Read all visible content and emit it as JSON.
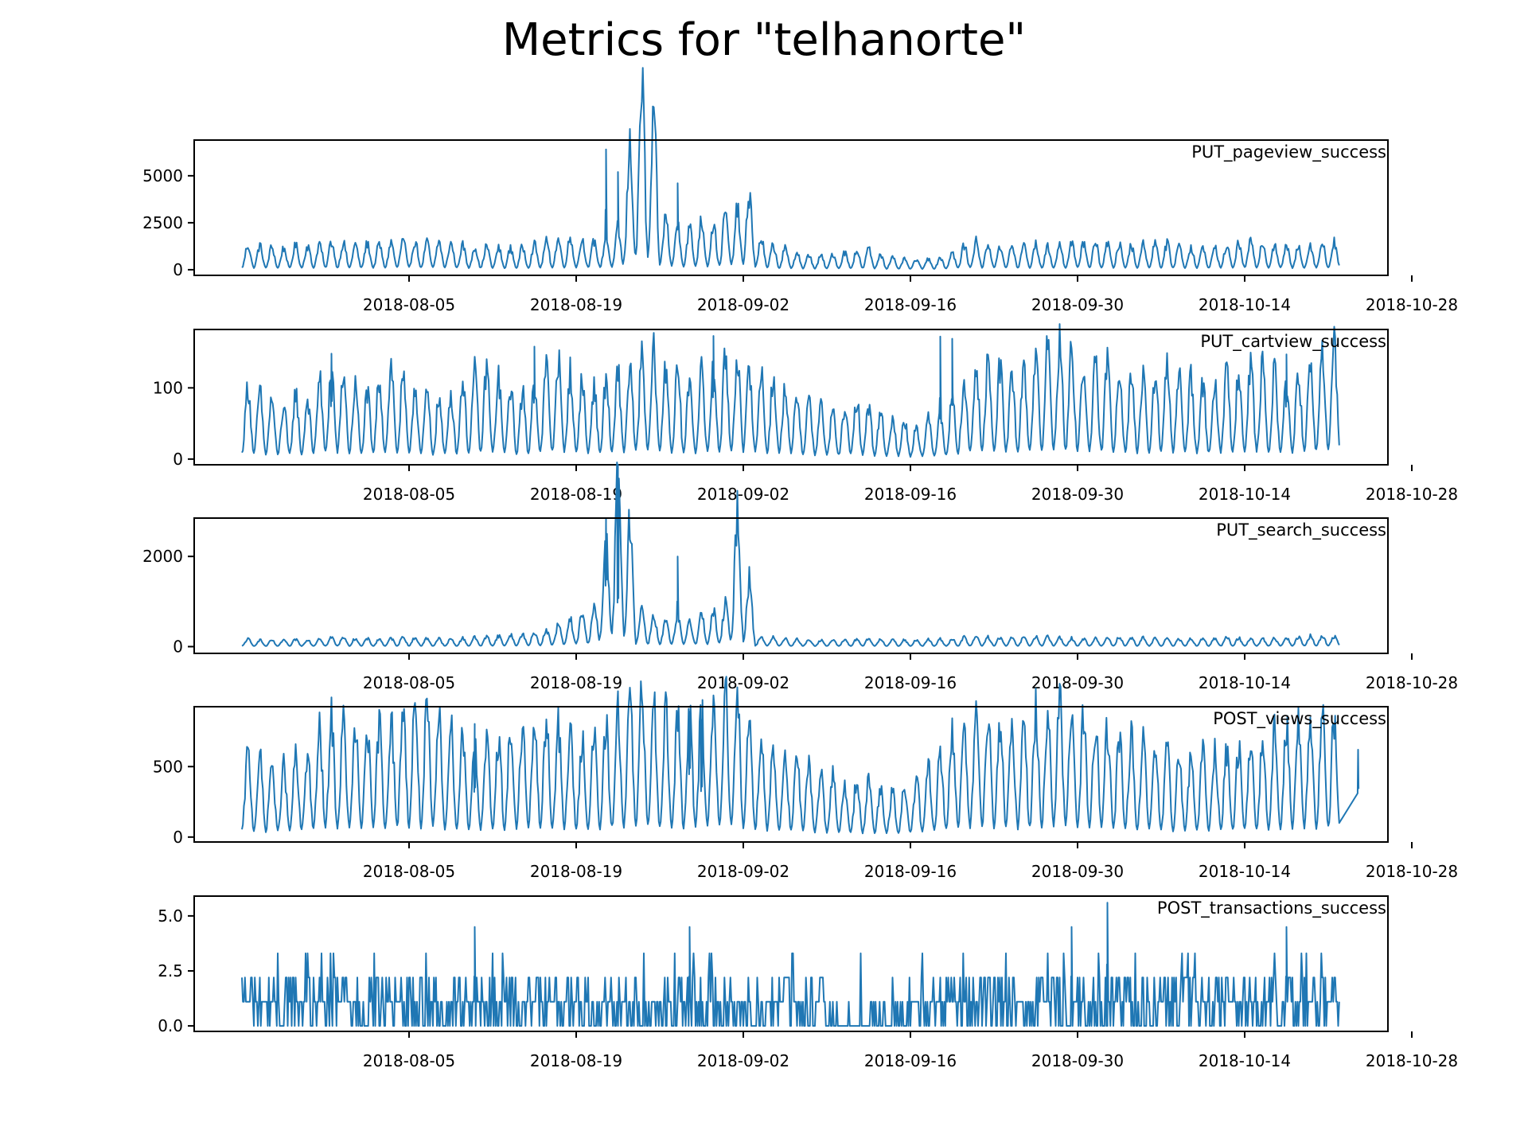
{
  "title": "Metrics for \"telhanorte\"",
  "colors": {
    "line": "#1f77b4",
    "axis": "#000000",
    "background": "#ffffff"
  },
  "chart_data": {
    "type": "line",
    "title": "Metrics for \"telhanorte\"",
    "x_start": "2018-07-22",
    "x_end": "2018-10-21",
    "xlim": [
      "2018-07-18",
      "2018-10-26"
    ],
    "x_ticks": [
      "2018-08-05",
      "2018-08-19",
      "2018-09-02",
      "2018-09-16",
      "2018-09-30",
      "2018-10-14",
      "2018-10-28"
    ],
    "grid": false,
    "panels": [
      {
        "name": "PUT_pageview_success",
        "ylim": [
          -300,
          6900
        ],
        "y_ticks": [
          0,
          2500,
          5000
        ],
        "y_tick_labels": [
          "0",
          "2500",
          "5000"
        ],
        "daily_mean": [
          700,
          680,
          650,
          620,
          700,
          680,
          750,
          800,
          760,
          720,
          750,
          730,
          780,
          850,
          820,
          780,
          800,
          760,
          700,
          650,
          680,
          620,
          600,
          650,
          720,
          800,
          860,
          900,
          850,
          820,
          900,
          1100,
          3500,
          5400,
          4200,
          1500,
          1300,
          1200,
          1400,
          1300,
          1600,
          1700,
          2200,
          900,
          700,
          600,
          500,
          420,
          400,
          450,
          500,
          550,
          600,
          450,
          350,
          300,
          300,
          320,
          350,
          500,
          700,
          800,
          750,
          700,
          680,
          700,
          720,
          650,
          700,
          760,
          800,
          780,
          750,
          730,
          700,
          720,
          780,
          740,
          700,
          650,
          620,
          650,
          700,
          750,
          800,
          780,
          720,
          680,
          650,
          700,
          750,
          800,
          850,
          900,
          950,
          1000,
          1050,
          1000,
          950,
          900,
          850,
          800
        ],
        "peaks": [
          [
            "2018-08-21",
            6400
          ],
          [
            "2018-08-22",
            5200
          ],
          [
            "2018-08-27",
            4600
          ]
        ]
      },
      {
        "name": "PUT_cartview_success",
        "ylim": [
          -8,
          182
        ],
        "y_ticks": [
          0,
          100
        ],
        "y_tick_labels": [
          "0",
          "100"
        ],
        "daily_mean": [
          55,
          50,
          45,
          40,
          50,
          45,
          60,
          70,
          65,
          55,
          50,
          60,
          70,
          60,
          55,
          50,
          45,
          50,
          60,
          65,
          70,
          60,
          55,
          50,
          60,
          70,
          75,
          65,
          60,
          55,
          60,
          65,
          70,
          75,
          80,
          70,
          65,
          60,
          65,
          70,
          75,
          80,
          70,
          65,
          60,
          55,
          50,
          45,
          40,
          35,
          40,
          45,
          40,
          35,
          30,
          30,
          25,
          30,
          35,
          45,
          60,
          70,
          75,
          70,
          65,
          70,
          80,
          85,
          90,
          80,
          75,
          70,
          75,
          70,
          65,
          60,
          65,
          70,
          65,
          60,
          55,
          60,
          65,
          70,
          75,
          70,
          65,
          60,
          65,
          70,
          80,
          85,
          90,
          85,
          80,
          75,
          70,
          65,
          60,
          55
        ],
        "peaks": [
          [
            "2018-07-29",
            148
          ],
          [
            "2018-08-15",
            158
          ],
          [
            "2018-08-30",
            173
          ],
          [
            "2018-09-18",
            172
          ],
          [
            "2018-09-19",
            169
          ],
          [
            "2018-10-17",
            147
          ]
        ]
      },
      {
        "name": "PUT_search_success",
        "ylim": [
          -150,
          2850
        ],
        "y_ticks": [
          0,
          2000
        ],
        "y_tick_labels": [
          "0",
          "2000"
        ],
        "daily_mean": [
          90,
          80,
          75,
          80,
          90,
          85,
          100,
          110,
          120,
          100,
          95,
          90,
          100,
          120,
          110,
          100,
          95,
          90,
          100,
          110,
          120,
          130,
          140,
          150,
          170,
          200,
          260,
          320,
          400,
          500,
          1300,
          2100,
          1500,
          450,
          380,
          300,
          350,
          320,
          380,
          420,
          500,
          1600,
          800,
          120,
          110,
          100,
          90,
          85,
          80,
          80,
          85,
          90,
          95,
          90,
          85,
          80,
          80,
          85,
          90,
          95,
          110,
          120,
          115,
          110,
          100,
          110,
          120,
          115,
          110,
          100,
          95,
          100,
          110,
          115,
          110,
          105,
          100,
          95,
          90,
          95,
          100,
          105,
          110,
          105,
          100,
          95,
          100,
          110,
          120,
          125,
          130,
          125,
          120,
          115,
          110,
          110,
          115,
          120,
          115,
          110
        ],
        "peaks": [
          [
            "2018-08-21",
            2700
          ],
          [
            "2018-08-22",
            1950
          ],
          [
            "2018-08-27",
            2000
          ]
        ]
      },
      {
        "name": "POST_views_success",
        "ylim": [
          -35,
          925
        ],
        "y_ticks": [
          0,
          500
        ],
        "y_tick_labels": [
          "0",
          "500"
        ],
        "daily_mean": [
          320,
          300,
          280,
          270,
          300,
          320,
          400,
          450,
          430,
          410,
          420,
          430,
          450,
          500,
          520,
          480,
          450,
          420,
          400,
          380,
          360,
          380,
          400,
          420,
          440,
          450,
          420,
          400,
          380,
          390,
          420,
          480,
          520,
          540,
          520,
          480,
          450,
          460,
          480,
          520,
          560,
          520,
          450,
          380,
          340,
          320,
          300,
          280,
          250,
          230,
          200,
          220,
          210,
          180,
          170,
          190,
          220,
          260,
          320,
          400,
          450,
          480,
          470,
          450,
          430,
          440,
          480,
          500,
          520,
          480,
          460,
          440,
          420,
          400,
          380,
          360,
          340,
          330,
          320,
          310,
          320,
          330,
          340,
          350,
          360,
          380,
          400,
          420,
          430,
          440,
          450,
          460,
          480,
          500,
          520,
          500,
          480,
          460,
          440,
          420
        ],
        "peaks": [
          [
            "2018-08-28",
            890
          ],
          [
            "2018-08-10",
            640
          ],
          [
            "2018-10-23",
            620
          ],
          [
            "2018-08-29",
            650
          ]
        ]
      },
      {
        "name": "POST_transactions_success",
        "ylim": [
          -0.25,
          5.9
        ],
        "y_ticks": [
          0.0,
          2.5,
          5.0
        ],
        "y_tick_labels": [
          "0.0",
          "2.5",
          "5.0"
        ],
        "daily_mean": [
          1.4,
          1.3,
          1.2,
          1.2,
          1.3,
          1.4,
          1.5,
          1.6,
          1.6,
          1.5,
          1.5,
          1.4,
          1.5,
          1.6,
          1.7,
          1.6,
          1.5,
          1.4,
          1.4,
          1.5,
          1.6,
          1.6,
          1.7,
          1.6,
          1.5,
          1.5,
          1.6,
          1.7,
          1.8,
          1.7,
          1.6,
          1.5,
          1.5,
          1.4,
          1.4,
          1.5,
          1.4,
          1.3,
          1.3,
          1.4,
          1.3,
          1.2,
          1.2,
          1.1,
          1.0,
          1.0,
          0.9,
          0.8,
          0.8,
          0.7,
          0.6,
          0.5,
          0.4,
          0.4,
          0.5,
          0.6,
          0.7,
          0.9,
          1.1,
          1.2,
          1.3,
          1.4,
          1.5,
          1.5,
          1.4,
          1.3,
          1.4,
          1.5,
          1.4,
          1.3,
          1.3,
          1.4,
          1.3,
          1.2,
          1.2,
          1.3,
          1.4,
          1.3,
          1.2,
          1.1,
          1.1,
          1.2,
          1.3,
          1.2,
          1.1,
          1.0,
          1.1,
          1.2,
          1.3,
          1.4,
          1.5,
          1.4,
          1.3,
          1.2,
          1.1,
          1.0,
          1.2,
          1.3,
          1.4,
          1.3
        ],
        "peaks": [
          [
            "2018-10-02",
            5.6
          ],
          [
            "2018-09-29",
            4.5
          ],
          [
            "2018-08-10",
            4.5
          ],
          [
            "2018-10-17",
            4.5
          ],
          [
            "2018-08-28",
            4.5
          ]
        ]
      }
    ]
  }
}
